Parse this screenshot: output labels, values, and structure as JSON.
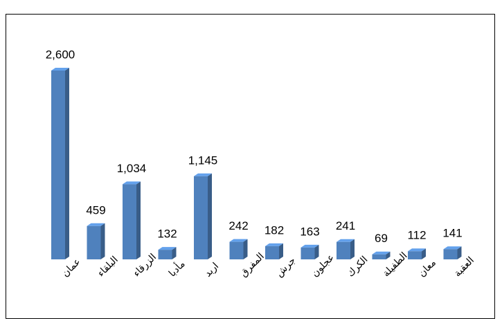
{
  "chart_data": {
    "type": "bar",
    "categories": [
      "عمان",
      "البلقاء",
      "الزرقاء",
      "مأدبا",
      "اربد",
      "المفرق",
      "جرش",
      "عجلون",
      "الكرك",
      "الطفيلة",
      "معان",
      "العقبة"
    ],
    "values": [
      2600,
      459,
      1034,
      132,
      1145,
      242,
      182,
      163,
      241,
      69,
      112,
      141
    ],
    "value_labels": [
      "2,600",
      "459",
      "1,034",
      "132",
      "1,145",
      "242",
      "182",
      "163",
      "241",
      "69",
      "112",
      "141"
    ],
    "color": "#4f81bd"
  }
}
